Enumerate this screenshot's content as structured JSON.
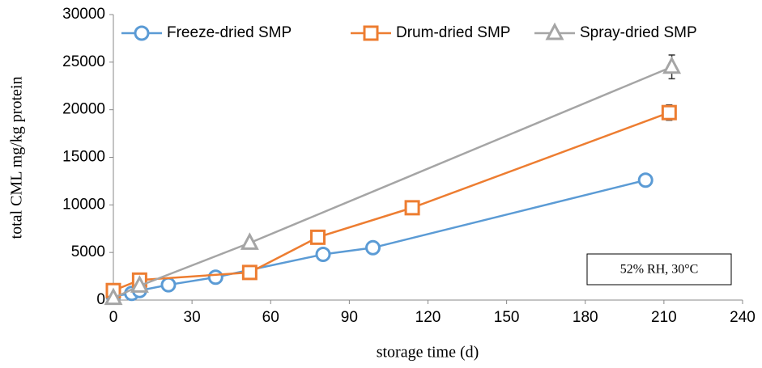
{
  "chart_data": {
    "type": "line",
    "x_label": "storage time (d)",
    "y_label": "total CML mg/kg protein",
    "annotation": "52% RH, 30°C",
    "xlim": [
      0,
      240
    ],
    "xticks": [
      0,
      30,
      60,
      90,
      120,
      150,
      180,
      210,
      240
    ],
    "ylim": [
      0,
      30000
    ],
    "yticks": [
      0,
      5000,
      10000,
      15000,
      20000,
      25000,
      30000
    ],
    "legend": "top",
    "series": [
      {
        "name": "Freeze-dried SMP",
        "color": "#5b9bd5",
        "marker": "circle",
        "x": [
          0,
          7,
          10,
          21,
          39,
          80,
          99,
          203
        ],
        "values": [
          400,
          700,
          1000,
          1600,
          2400,
          4800,
          5500,
          12600
        ],
        "errors": [
          100,
          100,
          100,
          150,
          150,
          200,
          200,
          300
        ]
      },
      {
        "name": "Drum-dried SMP",
        "color": "#ed7d31",
        "marker": "square",
        "x": [
          0,
          10,
          52,
          78,
          114,
          212
        ],
        "values": [
          1000,
          2100,
          2900,
          6600,
          9700,
          19700
        ],
        "errors": [
          100,
          150,
          200,
          300,
          500,
          800
        ]
      },
      {
        "name": "Spray-dried SMP",
        "color": "#a5a5a5",
        "marker": "triangle",
        "x": [
          0,
          10,
          52,
          213
        ],
        "values": [
          200,
          1500,
          6000,
          24500
        ],
        "errors": [
          100,
          150,
          300,
          1250
        ]
      }
    ]
  }
}
